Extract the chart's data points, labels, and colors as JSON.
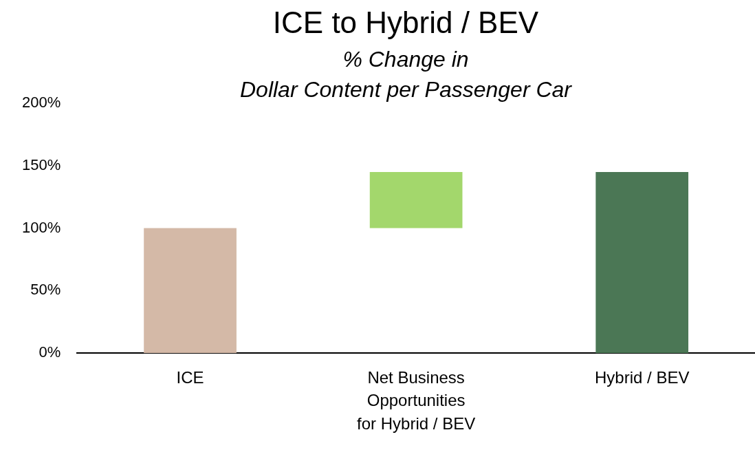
{
  "chart_data": {
    "type": "bar",
    "title": "ICE to Hybrid / BEV",
    "subtitle": "% Change in\nDollar Content per Passenger Car",
    "categories": [
      "ICE",
      "Net Business\nOpportunities\nfor Hybrid / BEV",
      "Hybrid / BEV"
    ],
    "values": [
      100,
      45,
      145
    ],
    "base": [
      0,
      100,
      0
    ],
    "colors": [
      "#d4b9a7",
      "#a3d76c",
      "#4b7755"
    ],
    "ylim": [
      0,
      200
    ],
    "yticks": [
      {
        "value": 0,
        "label": "0%"
      },
      {
        "value": 50,
        "label": "50%"
      },
      {
        "value": 100,
        "label": "100%"
      },
      {
        "value": 150,
        "label": "150%"
      },
      {
        "value": 200,
        "label": "200%"
      }
    ],
    "grid": false,
    "legend": false
  }
}
